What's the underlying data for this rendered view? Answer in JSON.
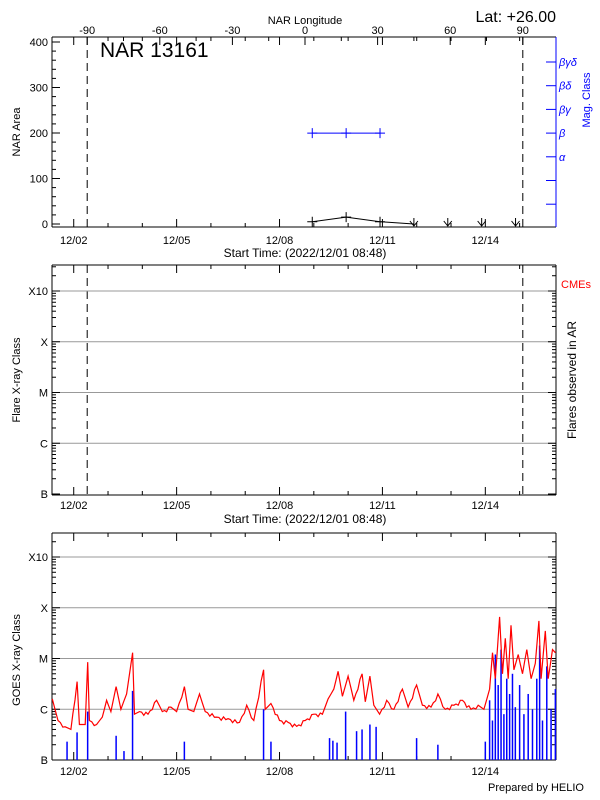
{
  "colors": {
    "axis": "#000000",
    "grid": "#999999",
    "goes_long": "#ff0000",
    "goes_short": "#0000ff",
    "mag_class": "#0000ff",
    "cme": "#ff0000"
  },
  "header": {
    "lat_label": "Lat: +26.00",
    "top_axis_label": "NAR Longitude",
    "region_title": "NAR 13161"
  },
  "footer": {
    "credit": "Prepared by HELIO"
  },
  "chart_data": [
    {
      "type": "line",
      "panel": "nar-area",
      "ylabel": "NAR Area",
      "ylim": [
        0,
        400
      ],
      "yticks": [
        "0",
        "100",
        "200",
        "300",
        "400"
      ],
      "top_xlabel": "NAR Longitude",
      "top_xlim_ticks": [
        "-90",
        "-60",
        "-30",
        "0",
        "30",
        "60",
        "90"
      ],
      "xlabel": "Start Time: (2022/12/01 08:48)",
      "date_ticks": [
        "12/02",
        "12/05",
        "12/08",
        "12/11",
        "12/14"
      ],
      "limb_longitudes": [
        -90,
        90
      ],
      "area_series": {
        "longitude": [
          3,
          17,
          31,
          45,
          59,
          73,
          87
        ],
        "area": [
          5,
          15,
          5,
          0,
          0,
          0,
          0
        ]
      },
      "right_ylabel": "Mag. Class",
      "mag_class_ticks": [
        "βγδ",
        "βδ",
        "βγ",
        "β",
        "α",
        "",
        ""
      ],
      "mag_class_series": {
        "longitude": [
          3,
          17,
          31
        ],
        "class": [
          "β",
          "β",
          "β"
        ]
      }
    },
    {
      "type": "scatter",
      "panel": "flares",
      "ylabel": "Flare X-ray Class",
      "yticks": [
        "B",
        "C",
        "M",
        "X",
        "X10"
      ],
      "right_ylabel": "Flares observed in AR",
      "cme_label": "CMEs",
      "xlabel": "Start Time: (2022/12/01 08:48)",
      "date_ticks": [
        "12/02",
        "12/05",
        "12/08",
        "12/11",
        "12/14"
      ],
      "limb_longitudes": [
        -90,
        90
      ],
      "points": [],
      "grid": true
    },
    {
      "type": "line",
      "panel": "goes",
      "ylabel": "GOES X-ray Class",
      "yticks": [
        "B",
        "C",
        "M",
        "X",
        "X10"
      ],
      "yscale": "log",
      "date_ticks": [
        "12/02",
        "12/05",
        "12/08",
        "12/11",
        "12/14"
      ],
      "grid": true,
      "series": [
        {
          "color": "#ff0000",
          "points": [
            [
              "12/01 09:00",
              1.6e-06
            ],
            [
              "12/01 13:00",
              6e-07
            ],
            [
              "12/01 18:00",
              4.5e-07
            ],
            [
              "12/01 22:00",
              4e-07
            ],
            [
              "12/02 02:20",
              3.5e-06
            ],
            [
              "12/02 04:00",
              5e-07
            ],
            [
              "12/02 08:00",
              5e-07
            ],
            [
              "12/02 09:45",
              8.5e-06
            ],
            [
              "12/02 11:00",
              6e-07
            ],
            [
              "12/02 16:00",
              5e-07
            ],
            [
              "12/02 20:00",
              7e-07
            ],
            [
              "12/02 23:00",
              1.5e-06
            ],
            [
              "12/03 02:00",
              9e-07
            ],
            [
              "12/03 05:40",
              2.8e-06
            ],
            [
              "12/03 09:00",
              1e-06
            ],
            [
              "12/03 13:00",
              2e-06
            ],
            [
              "12/03 17:10",
              1.3e-05
            ],
            [
              "12/03 18:30",
              8e-07
            ],
            [
              "12/03 22:00",
              9e-07
            ],
            [
              "12/04 04:00",
              8e-07
            ],
            [
              "12/04 10:00",
              1.5e-06
            ],
            [
              "12/04 14:00",
              9e-07
            ],
            [
              "12/04 20:00",
              1.1e-06
            ],
            [
              "12/05 00:00",
              9e-07
            ],
            [
              "12/05 05:25",
              2.8e-06
            ],
            [
              "12/05 08:00",
              1e-06
            ],
            [
              "12/05 12:00",
              9e-07
            ],
            [
              "12/05 16:00",
              2e-06
            ],
            [
              "12/05 20:00",
              9e-07
            ],
            [
              "12/06 04:00",
              7e-07
            ],
            [
              "12/06 12:00",
              6.5e-07
            ],
            [
              "12/06 20:00",
              5.5e-07
            ],
            [
              "12/07 01:00",
              1.2e-06
            ],
            [
              "12/07 06:00",
              6e-07
            ],
            [
              "12/07 12:50",
              6e-06
            ],
            [
              "12/07 14:00",
              1e-06
            ],
            [
              "12/07 18:00",
              1.3e-06
            ],
            [
              "12/08 00:00",
              6e-07
            ],
            [
              "12/08 06:00",
              5.5e-07
            ],
            [
              "12/08 12:00",
              4.6e-07
            ],
            [
              "12/08 18:00",
              6e-07
            ],
            [
              "12/09 00:00",
              8e-07
            ],
            [
              "12/09 06:00",
              8e-07
            ],
            [
              "12/09 10:00",
              1.6e-06
            ],
            [
              "12/09 14:00",
              2.5e-06
            ],
            [
              "12/09 17:00",
              5.6e-06
            ],
            [
              "12/09 20:00",
              1.8e-06
            ],
            [
              "12/10 00:00",
              4.5e-06
            ],
            [
              "12/10 04:00",
              1.5e-06
            ],
            [
              "12/10 09:45",
              5e-06
            ],
            [
              "12/10 12:00",
              1.4e-06
            ],
            [
              "12/10 15:15",
              4.5e-06
            ],
            [
              "12/10 18:00",
              1.2e-06
            ],
            [
              "12/10 22:00",
              8e-07
            ],
            [
              "12/11 03:00",
              1.5e-06
            ],
            [
              "12/11 08:00",
              1e-06
            ],
            [
              "12/11 14:00",
              2.5e-06
            ],
            [
              "12/11 18:00",
              1.1e-06
            ],
            [
              "12/11 23:55",
              3e-06
            ],
            [
              "12/12 04:00",
              1.2e-06
            ],
            [
              "12/12 10:00",
              1.1e-06
            ],
            [
              "12/12 14:48",
              2e-06
            ],
            [
              "12/12 20:00",
              1e-06
            ],
            [
              "12/13 02:00",
              1.2e-06
            ],
            [
              "12/13 08:00",
              1.5e-06
            ],
            [
              "12/13 14:00",
              1e-06
            ],
            [
              "12/13 19:00",
              1.2e-06
            ],
            [
              "12/13 23:00",
              1e-06
            ],
            [
              "12/14 03:00",
              2.5e-06
            ],
            [
              "12/14 05:00",
              1.3e-05
            ],
            [
              "12/14 07:00",
              4e-06
            ],
            [
              "12/14 10:00",
              6.6e-05
            ],
            [
              "12/14 12:00",
              5e-06
            ],
            [
              "12/14 14:00",
              2.5e-05
            ],
            [
              "12/14 16:00",
              4e-06
            ],
            [
              "12/14 18:00",
              4.5e-05
            ],
            [
              "12/14 20:00",
              6e-06
            ],
            [
              "12/14 23:00",
              1.2e-05
            ],
            [
              "12/15 02:00",
              5e-06
            ],
            [
              "12/15 05:00",
              1.5e-05
            ],
            [
              "12/15 08:00",
              4e-06
            ],
            [
              "12/15 11:00",
              8e-06
            ],
            [
              "12/15 13:30",
              5.5e-05
            ],
            [
              "12/15 15:00",
              4e-06
            ],
            [
              "12/15 18:00",
              3.5e-05
            ],
            [
              "12/15 20:00",
              4e-06
            ],
            [
              "12/15 23:00",
              1.5e-05
            ],
            [
              "12/16 01:00",
              1.3e-05
            ]
          ]
        },
        {
          "color": "#0000ff",
          "spikes": [
            [
              "12/01 19:20",
              2.3e-07
            ],
            [
              "12/02 02:20",
              3.5e-07
            ],
            [
              "12/02 09:45",
              9e-07
            ],
            [
              "12/03 05:40",
              3e-07
            ],
            [
              "12/03 11:10",
              1.5e-07
            ],
            [
              "12/03 17:10",
              2.3e-06
            ],
            [
              "12/05 05:25",
              2.3e-07
            ],
            [
              "12/07 12:50",
              1e-06
            ],
            [
              "12/07 18:00",
              2.3e-07
            ],
            [
              "12/09 11:00",
              2.7e-07
            ],
            [
              "12/09 13:20",
              2.4e-07
            ],
            [
              "12/09 16:15",
              2.2e-07
            ],
            [
              "12/09 22:15",
              9e-07
            ],
            [
              "12/10 05:55",
              3.7e-07
            ],
            [
              "12/10 09:45",
              4e-07
            ],
            [
              "12/10 15:15",
              5e-07
            ],
            [
              "12/10 19:35",
              4.5e-07
            ],
            [
              "12/11 23:55",
              2.7e-07
            ],
            [
              "12/12 14:48",
              2e-07
            ],
            [
              "12/14 00:00",
              2.3e-07
            ],
            [
              "12/14 03:00",
              1.5e-06
            ],
            [
              "12/14 05:00",
              6e-07
            ],
            [
              "12/14 07:00",
              1.2e-05
            ],
            [
              "12/14 09:00",
              3e-06
            ],
            [
              "12/14 11:00",
              1.5e-05
            ],
            [
              "12/14 13:00",
              8e-07
            ],
            [
              "12/14 15:00",
              4e-06
            ],
            [
              "12/14 17:00",
              2e-06
            ],
            [
              "12/14 19:00",
              5e-06
            ],
            [
              "12/14 21:00",
              1.1e-06
            ],
            [
              "12/15 00:00",
              3e-06
            ],
            [
              "12/15 03:00",
              8e-07
            ],
            [
              "12/15 06:00",
              2e-06
            ],
            [
              "12/15 09:00",
              1e-06
            ],
            [
              "12/15 12:00",
              4e-06
            ],
            [
              "12/15 14:00",
              1.8e-05
            ],
            [
              "12/15 16:00",
              6e-07
            ],
            [
              "12/15 19:00",
              7e-06
            ],
            [
              "12/15 22:00",
              1e-06
            ],
            [
              "12/16 01:00",
              2.5e-06
            ]
          ]
        }
      ]
    }
  ]
}
